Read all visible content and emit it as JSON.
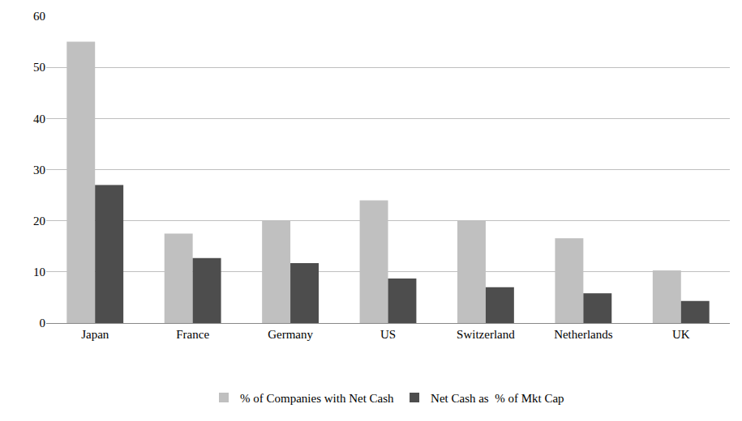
{
  "chart_data": {
    "type": "bar",
    "categories": [
      "Japan",
      "France",
      "Germany",
      "US",
      "Switzerland",
      "Netherlands",
      "UK"
    ],
    "series": [
      {
        "name": "% of Companies with Net Cash",
        "color": "#c0c0c0",
        "values": [
          55,
          17.5,
          20,
          24,
          20,
          16.6,
          10.3
        ]
      },
      {
        "name": "Net Cash as  % of Mkt Cap",
        "color": "#4d4d4d",
        "values": [
          27,
          12.7,
          11.7,
          8.7,
          7,
          5.8,
          4.3
        ]
      }
    ],
    "ylim": [
      0,
      60
    ],
    "yticks": [
      0,
      10,
      20,
      30,
      40,
      50,
      60
    ],
    "grid": true,
    "legend": "bottom"
  }
}
